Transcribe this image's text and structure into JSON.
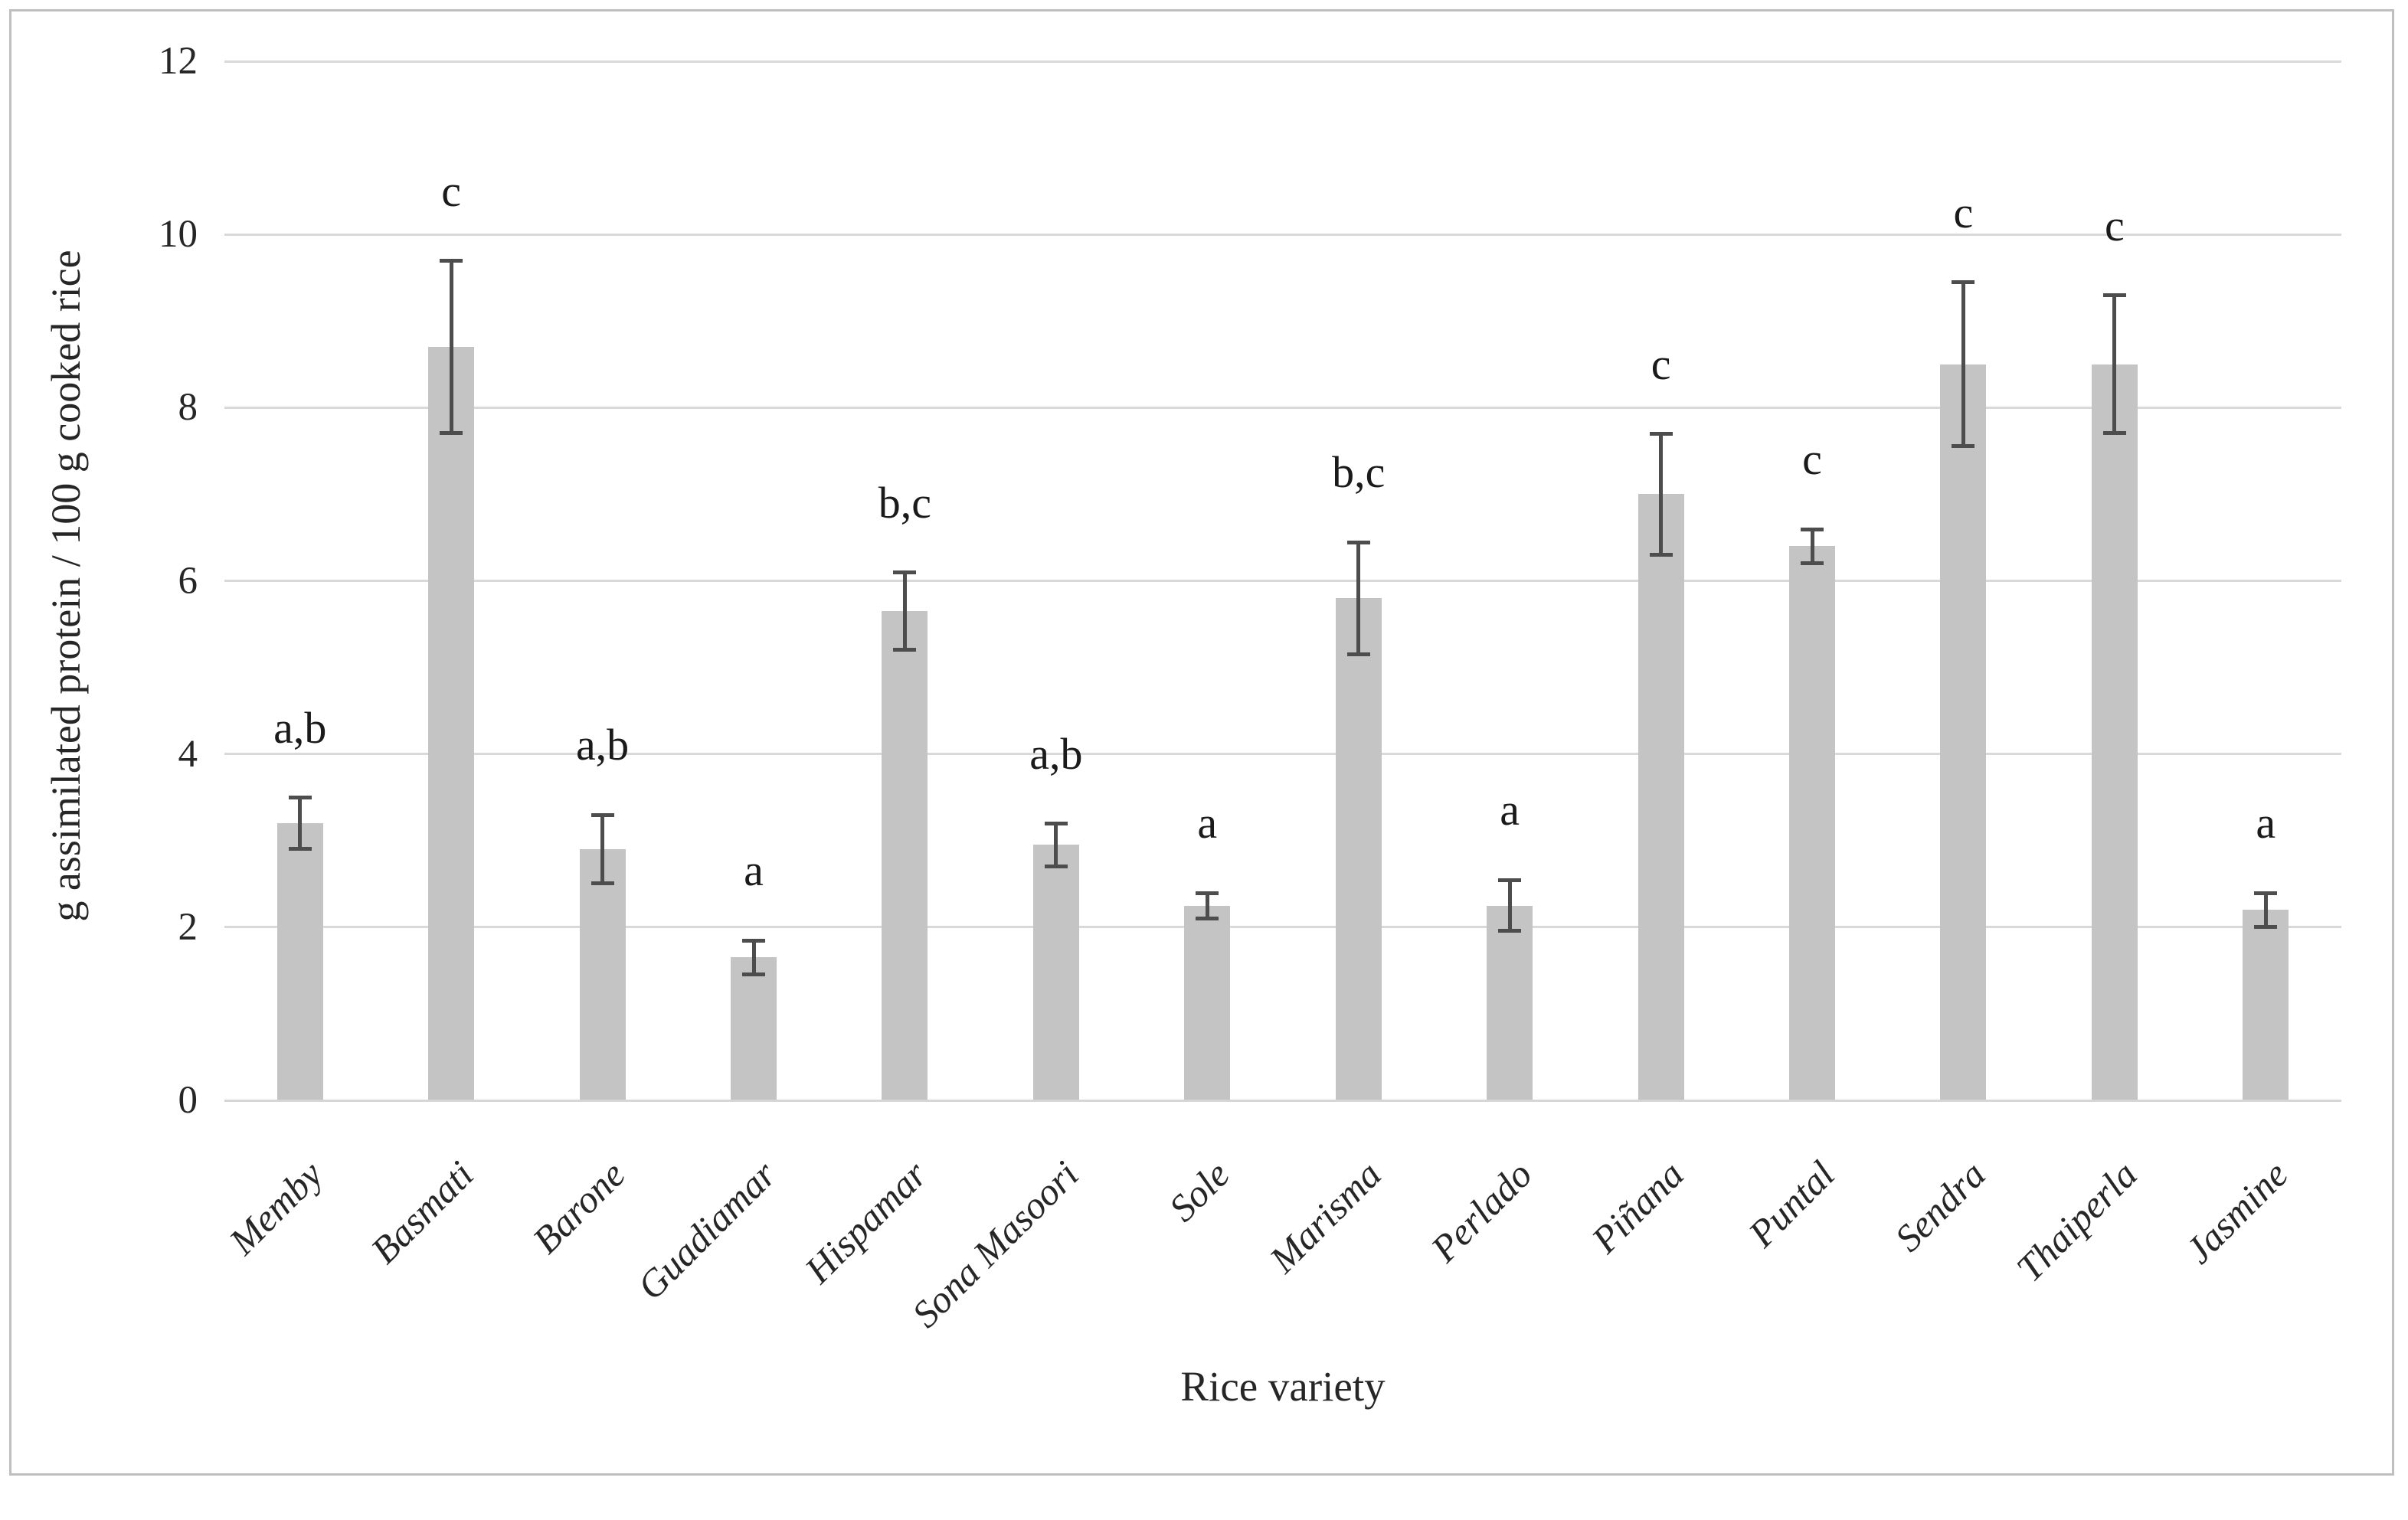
{
  "chart_data": {
    "type": "bar",
    "title": "",
    "xlabel": "Rice variety",
    "ylabel": "g assimilated protein / 100 g cooked rice",
    "ylim": [
      0,
      12
    ],
    "yticks": [
      0,
      2,
      4,
      6,
      8,
      10,
      12
    ],
    "grid": true,
    "legend_position": "none",
    "categories": [
      "Memby",
      "Basmati",
      "Barone",
      "Guadiamar",
      "Hispamar",
      "Sona Masoori",
      "Sole",
      "Marisma",
      "Perlado",
      "Piñana",
      "Puntal",
      "Sendra",
      "Thaiperla",
      "Jasmine"
    ],
    "values": [
      3.2,
      8.7,
      2.9,
      1.65,
      5.65,
      2.95,
      2.25,
      5.8,
      2.25,
      7.0,
      6.4,
      8.5,
      8.5,
      2.2
    ],
    "errors": [
      0.3,
      1.0,
      0.4,
      0.2,
      0.45,
      0.25,
      0.15,
      0.65,
      0.3,
      0.7,
      0.2,
      0.95,
      0.8,
      0.2
    ],
    "sig_letters": [
      "a,b",
      "c",
      "a,b",
      "a",
      "b,c",
      "a,b",
      "a",
      "b,c",
      "a",
      "c",
      "c",
      "c",
      "c",
      "a"
    ],
    "colors": {
      "bar_fill": "#c4c4c4",
      "error_bar": "#4d4d4d",
      "gridline": "#d9d9d9",
      "frame_border": "#bfbfbf",
      "text": "#262626",
      "background": "#ffffff"
    }
  }
}
